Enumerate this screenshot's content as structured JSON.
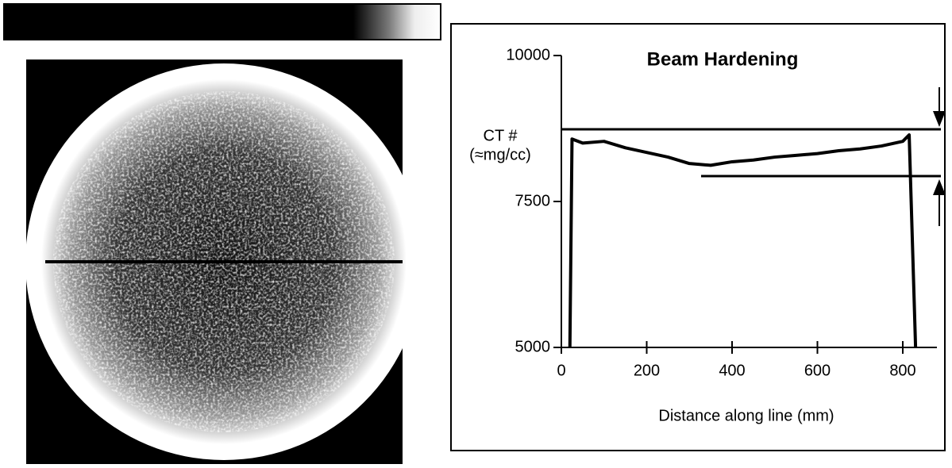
{
  "chart_data": {
    "type": "line",
    "title": "Beam Hardening",
    "ylabel": [
      "CT #",
      "(≈mg/cc)"
    ],
    "xlabel": "Distance along line (mm)",
    "x": [
      20,
      25,
      50,
      100,
      150,
      200,
      250,
      300,
      350,
      400,
      450,
      500,
      550,
      600,
      650,
      700,
      750,
      800,
      815,
      830
    ],
    "series": [
      {
        "color": "#000000",
        "values": [
          5000,
          8570,
          8500,
          8530,
          8420,
          8340,
          8260,
          8150,
          8120,
          8180,
          8210,
          8260,
          8290,
          8320,
          8370,
          8400,
          8450,
          8530,
          8640,
          5000
        ]
      }
    ],
    "xlim": [
      0,
      880
    ],
    "xticks": [
      0,
      200,
      400,
      600,
      800
    ],
    "ylim": [
      5000,
      10000
    ],
    "yticks": [
      5000,
      7500,
      10000
    ]
  }
}
